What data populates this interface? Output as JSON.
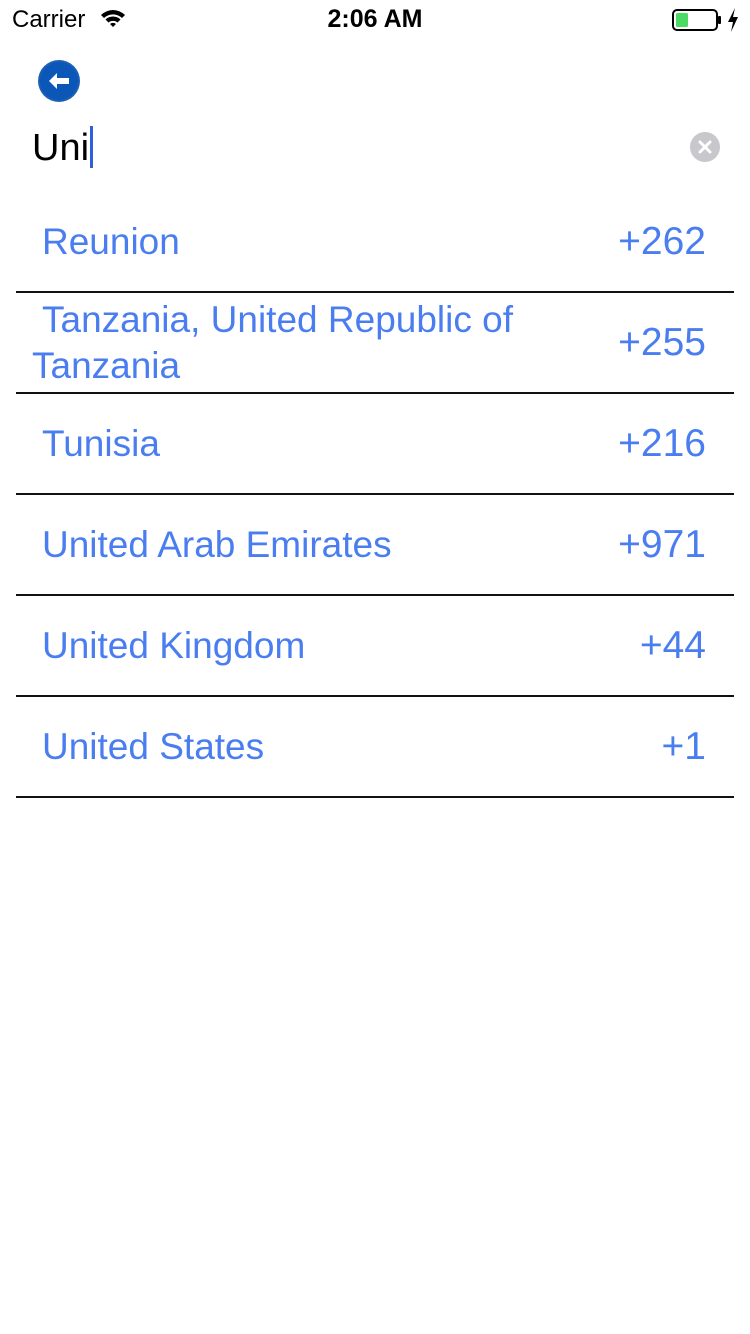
{
  "status_bar": {
    "carrier": "Carrier",
    "time": "2:06 AM",
    "battery_color": "#4cd964"
  },
  "back_button": {
    "icon": "arrow-left-icon",
    "color": "#1d5fb6"
  },
  "search": {
    "value": "Uni",
    "clear_icon": "clear-x-icon"
  },
  "countries": [
    {
      "name": "Reunion",
      "code": "+262"
    },
    {
      "name": "Tanzania, United Republic of Tanzania",
      "code": "+255"
    },
    {
      "name": "Tunisia",
      "code": "+216"
    },
    {
      "name": "United Arab Emirates",
      "code": "+971"
    },
    {
      "name": "United Kingdom",
      "code": "+44"
    },
    {
      "name": "United States",
      "code": "+1"
    }
  ],
  "colors": {
    "accent": "#4a7ef0",
    "divider": "#111111"
  }
}
